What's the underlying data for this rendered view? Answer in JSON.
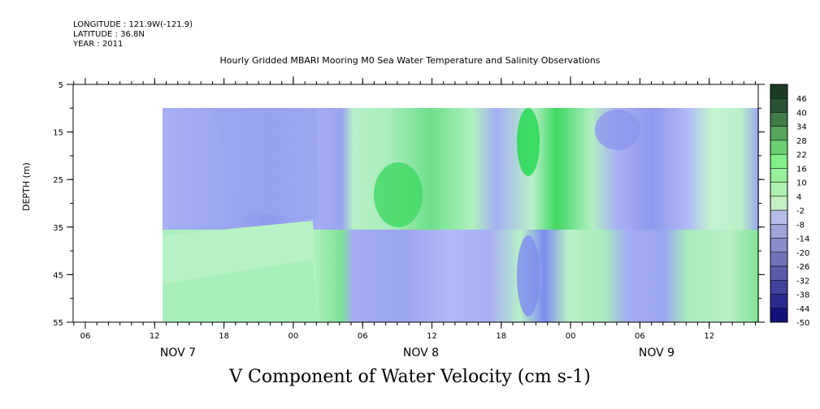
{
  "header": {
    "longitude": "LONGITUDE : 121.9W(-121.9)",
    "latitude": "LATITUDE : 36.8N",
    "year": "YEAR : 2011"
  },
  "chart_data": {
    "type": "heatmap",
    "title": "Hourly Gridded MBARI Mooring M0 Sea Water Temperature and Salinity Observations",
    "xlabel": "V Component of Water Velocity (cm s-1)",
    "ylabel": "DEPTH (m)",
    "y_ticks": [
      5,
      15,
      25,
      35,
      45,
      55
    ],
    "ylim": [
      55,
      5
    ],
    "x_hour_ticks": [
      "06",
      "12",
      "18",
      "00",
      "06",
      "12",
      "18",
      "00",
      "06",
      "12"
    ],
    "x_date_labels": [
      "NOV 7",
      "NOV 8",
      "NOV 9"
    ],
    "colorbar": {
      "levels": [
        48,
        46,
        40,
        34,
        28,
        22,
        16,
        10,
        4,
        -2,
        -8,
        -14,
        -20,
        -26,
        -32,
        -38,
        -44,
        -50
      ],
      "tick_labels": [
        "46",
        "40",
        "34",
        "28",
        "22",
        "16",
        "10",
        "4",
        "-2",
        "-8",
        "-14",
        "-20",
        "-26",
        "-32",
        "-38",
        "-44",
        "-50"
      ]
    },
    "data_depth_range": [
      10,
      55
    ],
    "grid": false
  }
}
